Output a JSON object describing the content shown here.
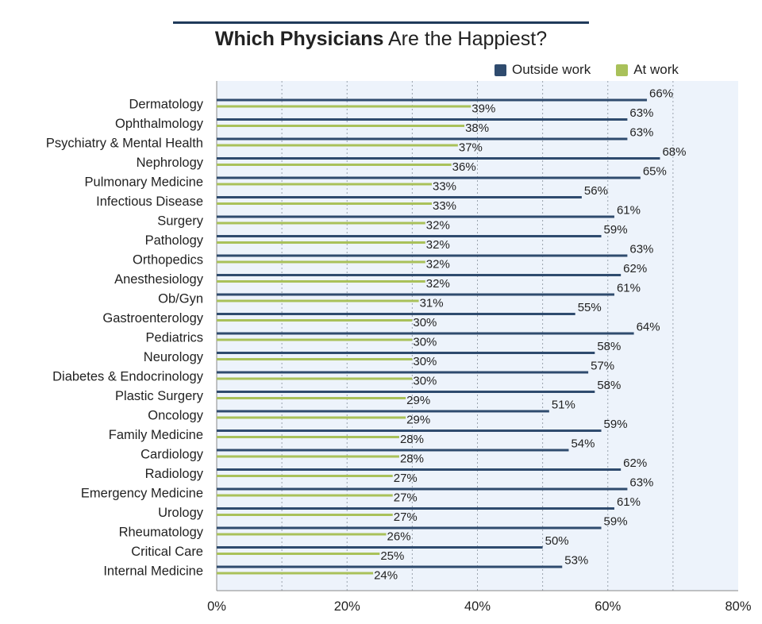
{
  "chart_data": {
    "type": "bar",
    "orientation": "horizontal",
    "title_bold": "Which Physicians",
    "title_rest": "Are the Happiest?",
    "categories": [
      "Dermatology",
      "Ophthalmology",
      "Psychiatry & Mental Health",
      "Nephrology",
      "Pulmonary Medicine",
      "Infectious Disease",
      "Surgery",
      "Pathology",
      "Orthopedics",
      "Anesthesiology",
      "Ob/Gyn",
      "Gastroenterology",
      "Pediatrics",
      "Neurology",
      "Diabetes & Endocrinology",
      "Plastic Surgery",
      "Oncology",
      "Family Medicine",
      "Cardiology",
      "Radiology",
      "Emergency Medicine",
      "Urology",
      "Rheumatology",
      "Critical Care",
      "Internal Medicine"
    ],
    "series": [
      {
        "name": "Outside work",
        "color": "#2f4b6e",
        "values": [
          66,
          63,
          63,
          68,
          65,
          56,
          61,
          59,
          63,
          62,
          61,
          55,
          64,
          58,
          57,
          58,
          51,
          59,
          54,
          62,
          63,
          61,
          59,
          50,
          53
        ]
      },
      {
        "name": "At work",
        "color": "#a9c15a",
        "values": [
          39,
          38,
          37,
          36,
          33,
          33,
          32,
          32,
          32,
          32,
          31,
          30,
          30,
          30,
          30,
          29,
          29,
          28,
          28,
          27,
          27,
          27,
          26,
          25,
          24
        ]
      }
    ],
    "xlim": [
      0,
      80
    ],
    "xticks": [
      "0%",
      "20%",
      "40%",
      "60%",
      "80%"
    ],
    "value_suffix": "%",
    "legend_position": "top-right",
    "grid": true
  }
}
